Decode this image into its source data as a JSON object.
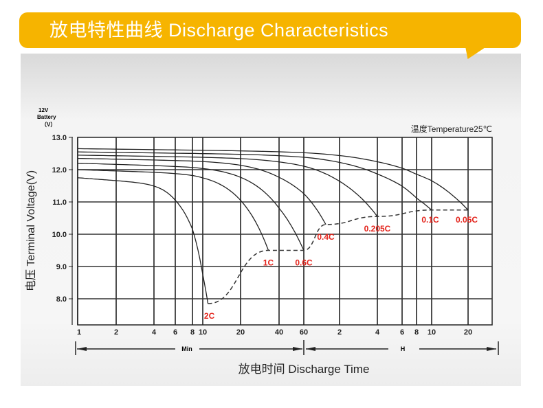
{
  "title": "放电特性曲线 Discharge Characteristics",
  "colors": {
    "banner": "#f6b400",
    "curve_label": "#e3231b",
    "grid": "#222222"
  },
  "chart_data": {
    "type": "line",
    "title": "放电特性曲线 Discharge Characteristics",
    "ylabel": "电压 Terminal Voltage(V)",
    "ylabel_unit_top": [
      "12V",
      "Battery",
      "（V）"
    ],
    "xlabel": "放电时间 Discharge Time",
    "annotation": "温度Temperature25℃",
    "ylim": [
      7.3,
      13.0
    ],
    "y_ticks": [
      "13.0",
      "12.0",
      "11.0",
      "10.0",
      "9.0",
      "8.0"
    ],
    "x_scale": "log",
    "x_ticks_min": [
      "1",
      "2",
      "4",
      "6",
      "8",
      "10",
      "20",
      "40",
      "60"
    ],
    "x_ticks_h": [
      "2",
      "4",
      "6",
      "8",
      "10",
      "20"
    ],
    "x_unit_min": "Min",
    "x_unit_h": "H",
    "series": [
      {
        "name": "2C",
        "start_v": 11.75,
        "end_minutes": 11,
        "end_v": 7.85
      },
      {
        "name": "1C",
        "start_v": 12.0,
        "end_minutes": 33,
        "end_v": 9.5
      },
      {
        "name": "0.6C",
        "start_v": 12.2,
        "end_minutes": 60,
        "end_v": 9.5
      },
      {
        "name": "0.4C",
        "start_v": 12.35,
        "end_minutes": 92,
        "end_v": 10.3
      },
      {
        "name": "0.205C",
        "start_v": 12.45,
        "end_minutes": 240,
        "end_v": 10.55
      },
      {
        "name": "0.1C",
        "start_v": 12.55,
        "end_minutes": 600,
        "end_v": 10.75
      },
      {
        "name": "0.05C",
        "start_v": 12.65,
        "end_minutes": 1200,
        "end_v": 10.75
      }
    ]
  }
}
